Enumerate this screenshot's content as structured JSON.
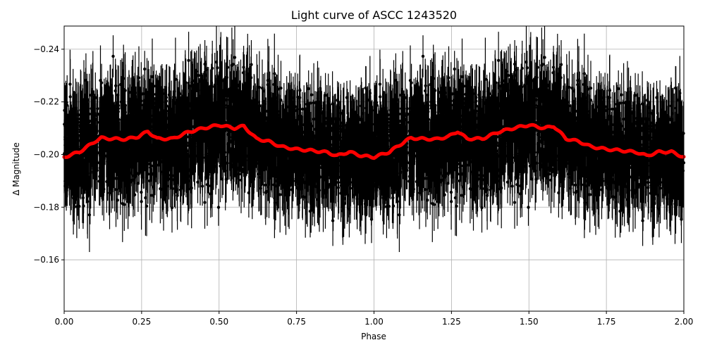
{
  "chart_data": {
    "type": "scatter",
    "title": "Light curve of ASCC 1243520",
    "xlabel": "Phase",
    "ylabel": "Δ Magnitude",
    "xlim": [
      0.0,
      2.0
    ],
    "ylim": [
      -0.1405,
      -0.2488
    ],
    "y_inverted": true,
    "grid": true,
    "xticks": [
      "0.00",
      "0.25",
      "0.50",
      "0.75",
      "1.00",
      "1.25",
      "1.50",
      "1.75",
      "2.00"
    ],
    "yticks": [
      "−0.24",
      "−0.22",
      "−0.20",
      "−0.18",
      "−0.16"
    ],
    "xtick_values": [
      0.0,
      0.25,
      0.5,
      0.75,
      1.0,
      1.25,
      1.5,
      1.75,
      2.0
    ],
    "ytick_values": [
      -0.24,
      -0.22,
      -0.2,
      -0.18,
      -0.16
    ],
    "series": [
      {
        "name": "observations",
        "style": "black points with error bars",
        "color": "#000000",
        "description": "Dense phase-folded photometry, scattered roughly from -0.25 to -0.14 with large error bars; repeated over two phase cycles"
      },
      {
        "name": "binned model",
        "style": "thick line",
        "color": "#ff0000",
        "x": [
          0.0,
          0.05,
          0.1,
          0.12,
          0.15,
          0.2,
          0.24,
          0.27,
          0.3,
          0.35,
          0.4,
          0.45,
          0.5,
          0.55,
          0.58,
          0.62,
          0.66,
          0.7,
          0.75,
          0.8,
          0.85,
          0.88,
          0.92,
          0.96,
          1.0,
          1.05,
          1.1,
          1.12,
          1.15,
          1.2,
          1.24,
          1.27,
          1.3,
          1.35,
          1.4,
          1.45,
          1.5,
          1.55,
          1.58,
          1.62,
          1.66,
          1.7,
          1.75,
          1.8,
          1.85,
          1.88,
          1.92,
          1.96,
          2.0
        ],
        "y": [
          -0.199,
          -0.201,
          -0.205,
          -0.2063,
          -0.206,
          -0.2058,
          -0.2068,
          -0.2088,
          -0.206,
          -0.206,
          -0.2085,
          -0.21,
          -0.2112,
          -0.21,
          -0.2108,
          -0.206,
          -0.205,
          -0.203,
          -0.202,
          -0.2015,
          -0.2008,
          -0.1995,
          -0.201,
          -0.1995,
          -0.199,
          -0.201,
          -0.205,
          -0.2063,
          -0.206,
          -0.2058,
          -0.2068,
          -0.2088,
          -0.206,
          -0.206,
          -0.2085,
          -0.21,
          -0.2112,
          -0.21,
          -0.2108,
          -0.206,
          -0.205,
          -0.203,
          -0.202,
          -0.2015,
          -0.2008,
          -0.1995,
          -0.201,
          -0.201,
          -0.199
        ]
      }
    ]
  }
}
